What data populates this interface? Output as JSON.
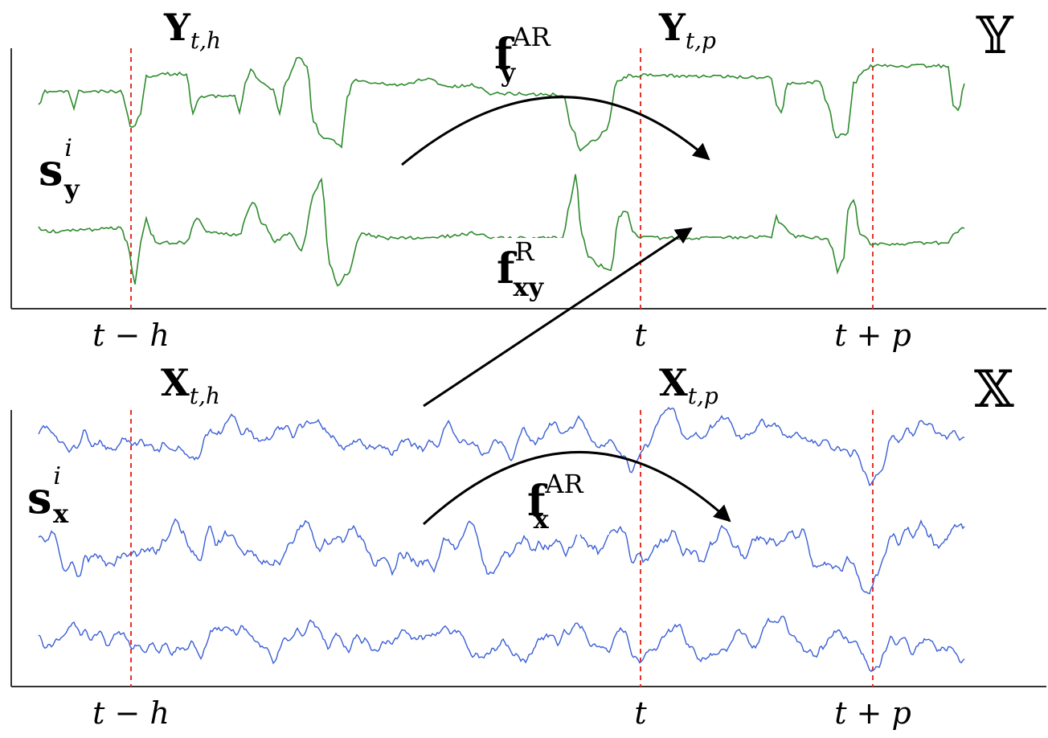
{
  "colors": {
    "y_series": "#2e8b2e",
    "x_series": "#3a5fd6",
    "marker": "#e8332b",
    "arrow": "#000000"
  },
  "top": {
    "space": "𝕐",
    "window_hist": {
      "base": "Y",
      "sub": "t,h"
    },
    "window_pred": {
      "base": "Y",
      "sub": "t,p"
    },
    "series_label": {
      "base": "s",
      "sub": "y",
      "sup": "i"
    },
    "ticks": [
      "t − h",
      "t",
      "t + p"
    ]
  },
  "bottom": {
    "space": "𝕏",
    "window_hist": {
      "base": "X",
      "sub": "t,h"
    },
    "window_pred": {
      "base": "X",
      "sub": "t,p"
    },
    "series_label": {
      "base": "s",
      "sub": "x",
      "sup": "i"
    },
    "ticks": [
      "t − h",
      "t",
      "t + p"
    ]
  },
  "arrows": {
    "f_y_ar": {
      "base": "f",
      "sub": "y",
      "sup": "AR"
    },
    "f_xy_r": {
      "base": "f",
      "sub": "xy",
      "sup": "R"
    },
    "f_x_ar": {
      "base": "f",
      "sub": "x",
      "sup": "AR"
    }
  }
}
